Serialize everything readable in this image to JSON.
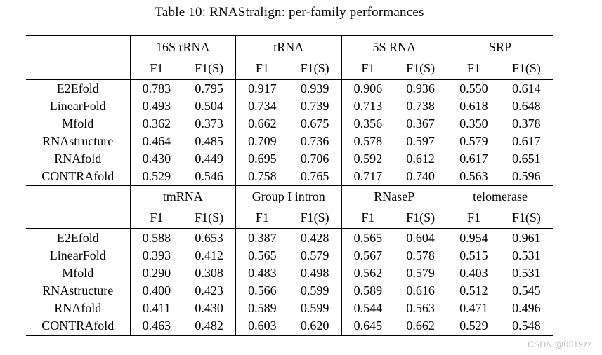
{
  "title": "Table 10: RNAStralign: per-family performances",
  "watermark": "CSDN @0319zz",
  "table": {
    "metric_labels": [
      "F1",
      "F1(S)"
    ],
    "blocks": [
      {
        "groups": [
          "16S rRNA",
          "tRNA",
          "5S RNA",
          "SRP"
        ],
        "rows": [
          {
            "label": "E2Efold",
            "values": [
              "0.783",
              "0.795",
              "0.917",
              "0.939",
              "0.906",
              "0.936",
              "0.550",
              "0.614"
            ]
          },
          {
            "label": "LinearFold",
            "values": [
              "0.493",
              "0.504",
              "0.734",
              "0.739",
              "0.713",
              "0.738",
              "0.618",
              "0.648"
            ]
          },
          {
            "label": "Mfold",
            "values": [
              "0.362",
              "0.373",
              "0.662",
              "0.675",
              "0.356",
              "0.367",
              "0.350",
              "0.378"
            ]
          },
          {
            "label": "RNAstructure",
            "values": [
              "0.464",
              "0.485",
              "0.709",
              "0.736",
              "0.578",
              "0.597",
              "0.579",
              "0.617"
            ]
          },
          {
            "label": "RNAfold",
            "values": [
              "0.430",
              "0.449",
              "0.695",
              "0.706",
              "0.592",
              "0.612",
              "0.617",
              "0.651"
            ]
          },
          {
            "label": "CONTRAfold",
            "values": [
              "0.529",
              "0.546",
              "0.758",
              "0.765",
              "0.717",
              "0.740",
              "0.563",
              "0.596"
            ]
          }
        ]
      },
      {
        "groups": [
          "tmRNA",
          "Group I intron",
          "RNaseP",
          "telomerase"
        ],
        "rows": [
          {
            "label": "E2Efold",
            "values": [
              "0.588",
              "0.653",
              "0.387",
              "0.428",
              "0.565",
              "0.604",
              "0.954",
              "0.961"
            ]
          },
          {
            "label": "LinearFold",
            "values": [
              "0.393",
              "0.412",
              "0.565",
              "0.579",
              "0.567",
              "0.578",
              "0.515",
              "0.531"
            ]
          },
          {
            "label": "Mfold",
            "values": [
              "0.290",
              "0.308",
              "0.483",
              "0.498",
              "0.562",
              "0.579",
              "0.403",
              "0.531"
            ]
          },
          {
            "label": "RNAstructure",
            "values": [
              "0.400",
              "0.423",
              "0.566",
              "0.599",
              "0.589",
              "0.616",
              "0.512",
              "0.545"
            ]
          },
          {
            "label": "RNAfold",
            "values": [
              "0.411",
              "0.430",
              "0.589",
              "0.599",
              "0.544",
              "0.563",
              "0.471",
              "0.496"
            ]
          },
          {
            "label": "CONTRAfold",
            "values": [
              "0.463",
              "0.482",
              "0.603",
              "0.620",
              "0.645",
              "0.662",
              "0.529",
              "0.548"
            ]
          }
        ]
      }
    ]
  },
  "chart_data": {
    "type": "table",
    "title": "Table 10: RNAStralign: per-family performances",
    "column_groups": [
      "16S rRNA",
      "tRNA",
      "5S RNA",
      "SRP",
      "tmRNA",
      "Group I intron",
      "RNaseP",
      "telomerase"
    ],
    "metrics_per_group": [
      "F1",
      "F1(S)"
    ],
    "methods": [
      "E2Efold",
      "LinearFold",
      "Mfold",
      "RNAstructure",
      "RNAfold",
      "CONTRAfold"
    ],
    "values": {
      "E2Efold": [
        0.783,
        0.795,
        0.917,
        0.939,
        0.906,
        0.936,
        0.55,
        0.614,
        0.588,
        0.653,
        0.387,
        0.428,
        0.565,
        0.604,
        0.954,
        0.961
      ],
      "LinearFold": [
        0.493,
        0.504,
        0.734,
        0.739,
        0.713,
        0.738,
        0.618,
        0.648,
        0.393,
        0.412,
        0.565,
        0.579,
        0.567,
        0.578,
        0.515,
        0.531
      ],
      "Mfold": [
        0.362,
        0.373,
        0.662,
        0.675,
        0.356,
        0.367,
        0.35,
        0.378,
        0.29,
        0.308,
        0.483,
        0.498,
        0.562,
        0.579,
        0.403,
        0.531
      ],
      "RNAstructure": [
        0.464,
        0.485,
        0.709,
        0.736,
        0.578,
        0.597,
        0.579,
        0.617,
        0.4,
        0.423,
        0.566,
        0.599,
        0.589,
        0.616,
        0.512,
        0.545
      ],
      "RNAfold": [
        0.43,
        0.449,
        0.695,
        0.706,
        0.592,
        0.612,
        0.617,
        0.651,
        0.411,
        0.43,
        0.589,
        0.599,
        0.544,
        0.563,
        0.471,
        0.496
      ],
      "CONTRAfold": [
        0.529,
        0.546,
        0.758,
        0.765,
        0.717,
        0.74,
        0.563,
        0.596,
        0.463,
        0.482,
        0.603,
        0.62,
        0.645,
        0.662,
        0.529,
        0.548
      ]
    }
  }
}
